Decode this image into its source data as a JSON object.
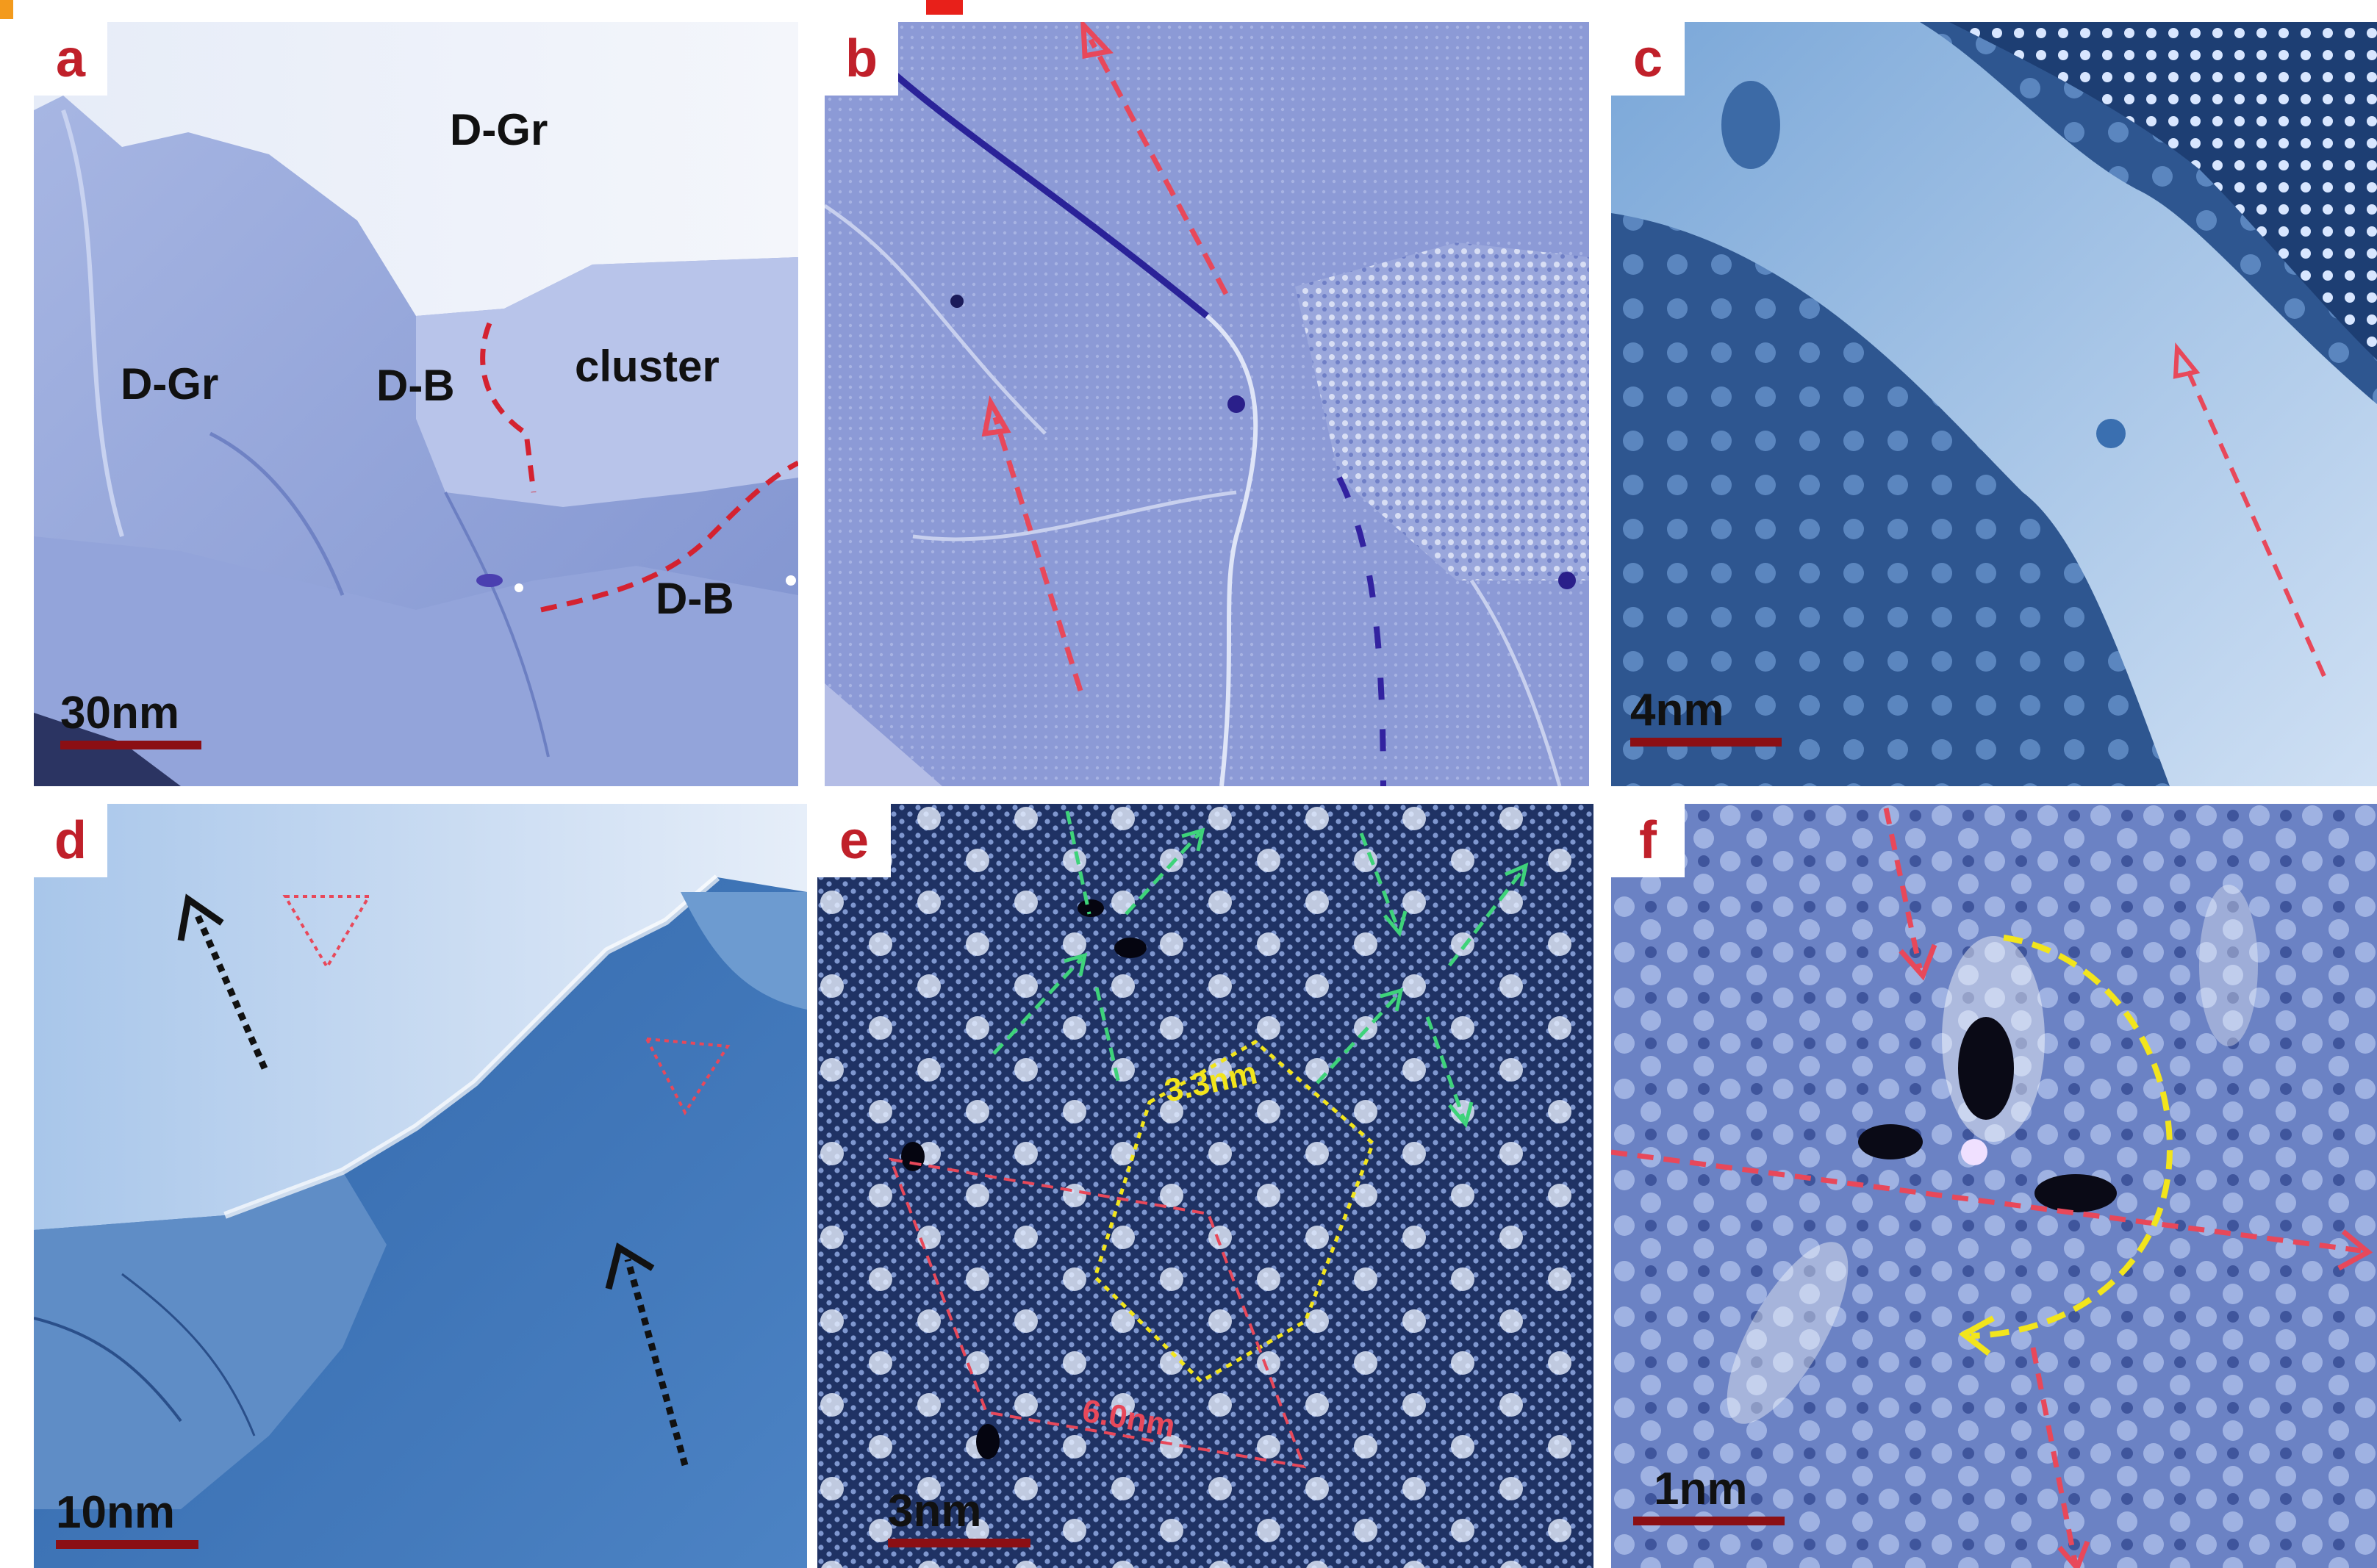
{
  "panels": {
    "a": {
      "label": "a",
      "scale": "30nm",
      "regions": {
        "dgr_top": "D-Gr",
        "dgr_left": "D-Gr",
        "db_mid": "D-B",
        "cluster": "cluster",
        "db_bottom": "D-B"
      }
    },
    "b": {
      "label": "b"
    },
    "c": {
      "label": "c",
      "scale": "4nm"
    },
    "d": {
      "label": "d",
      "scale": "10nm"
    },
    "e": {
      "label": "e",
      "scale": "3nm",
      "hex_measure": "3.3nm",
      "rhombus_measure": "6.0nm"
    },
    "f": {
      "label": "f",
      "scale": "1nm"
    }
  },
  "colors": {
    "panel_label": "#c0202a",
    "red_dashed": "#e8485a",
    "green_dashed": "#3ed37a",
    "yellow_dashed": "#f2e51c",
    "scale_bar": "#8b0f14",
    "black_dotted": "#111111"
  }
}
